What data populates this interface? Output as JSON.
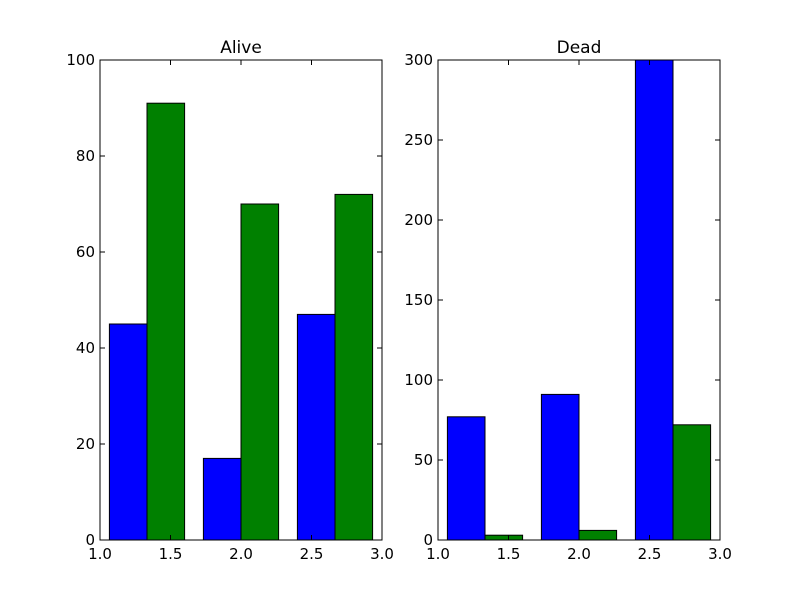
{
  "chart_data": [
    {
      "type": "bar",
      "title": "Alive",
      "xlim": [
        1.0,
        3.0
      ],
      "ylim": [
        0,
        100
      ],
      "xticks": [
        1.0,
        1.5,
        2.0,
        2.5,
        3.0
      ],
      "xtick_labels": [
        "1.0",
        "1.5",
        "2.0",
        "2.5",
        "3.0"
      ],
      "yticks": [
        0,
        20,
        40,
        60,
        80,
        100
      ],
      "ytick_labels": [
        "0",
        "20",
        "40",
        "60",
        "80",
        "100"
      ],
      "bar_width": 0.2667,
      "series": [
        {
          "color": "#0000ff",
          "x": [
            1.0667,
            1.7333,
            2.4
          ],
          "values": [
            45,
            17,
            47
          ]
        },
        {
          "color": "#008000",
          "x": [
            1.3333,
            2.0,
            2.6667
          ],
          "values": [
            91,
            70,
            72
          ]
        }
      ]
    },
    {
      "type": "bar",
      "title": "Dead",
      "xlim": [
        1.0,
        3.0
      ],
      "ylim": [
        0,
        300
      ],
      "xticks": [
        1.0,
        1.5,
        2.0,
        2.5,
        3.0
      ],
      "xtick_labels": [
        "1.0",
        "1.5",
        "2.0",
        "2.5",
        "3.0"
      ],
      "yticks": [
        0,
        50,
        100,
        150,
        200,
        250,
        300
      ],
      "ytick_labels": [
        "0",
        "50",
        "100",
        "150",
        "200",
        "250",
        "300"
      ],
      "bar_width": 0.2667,
      "series": [
        {
          "color": "#0000ff",
          "x": [
            1.0667,
            1.7333,
            2.4
          ],
          "values": [
            77,
            91,
            300
          ]
        },
        {
          "color": "#008000",
          "x": [
            1.3333,
            2.0,
            2.6667
          ],
          "values": [
            3,
            6,
            72
          ]
        }
      ]
    }
  ]
}
